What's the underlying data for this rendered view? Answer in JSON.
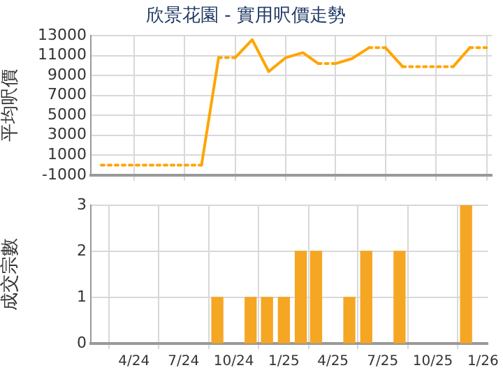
{
  "chart_data": [
    {
      "type": "line",
      "title": "欣景花園 - 實用呎價走勢",
      "ylabel": "平均呎價",
      "ylim": [
        -1000,
        13000
      ],
      "yticks": [
        -1000,
        1000,
        3000,
        5000,
        7000,
        9000,
        11000,
        13000
      ],
      "xlim": [
        "2024-01-13",
        "2026-01-10"
      ],
      "xticks": [
        {
          "value": "2024-04",
          "label": null
        },
        {
          "value": "2024-07",
          "label": null
        },
        {
          "value": "2024-10",
          "label": null
        },
        {
          "value": "2025-01",
          "label": null
        },
        {
          "value": "2025-04",
          "label": null
        },
        {
          "value": "2025-07",
          "label": null
        },
        {
          "value": "2025-10",
          "label": null
        },
        {
          "value": "2026-01",
          "label": null
        }
      ],
      "tick_labels": "y",
      "grid": true,
      "legend": false,
      "marker": "none",
      "series": [
        {
          "color": "#ffa500",
          "line_style": "dotted",
          "x": [
            "2024-02",
            "2024-03",
            "2024-04",
            "2024-05",
            "2024-06",
            "2024-07",
            "2024-08"
          ],
          "values": [
            0,
            0,
            0,
            0,
            0,
            0,
            0
          ]
        },
        {
          "color": "#ffa500",
          "line_style": "solid",
          "x": [
            "2024-08",
            "2024-09"
          ],
          "values": [
            0,
            10800
          ]
        },
        {
          "color": "#ffa500",
          "line_style": "dotted",
          "x": [
            "2024-09",
            "2024-10"
          ],
          "values": [
            10800,
            10800
          ]
        },
        {
          "color": "#ffa500",
          "line_style": "solid",
          "x": [
            "2024-10",
            "2024-11",
            "2024-12",
            "2025-01",
            "2025-02",
            "2025-03"
          ],
          "values": [
            10800,
            12600,
            9400,
            10800,
            11300,
            10200
          ]
        },
        {
          "color": "#ffa500",
          "line_style": "dotted",
          "x": [
            "2025-03",
            "2025-04"
          ],
          "values": [
            10200,
            10200
          ]
        },
        {
          "color": "#ffa500",
          "line_style": "solid",
          "x": [
            "2025-04",
            "2025-05",
            "2025-06"
          ],
          "values": [
            10200,
            10700,
            11800
          ]
        },
        {
          "color": "#ffa500",
          "line_style": "dotted",
          "x": [
            "2025-06",
            "2025-07"
          ],
          "values": [
            11800,
            11800
          ]
        },
        {
          "color": "#ffa500",
          "line_style": "solid",
          "x": [
            "2025-07",
            "2025-08"
          ],
          "values": [
            11800,
            9900
          ]
        },
        {
          "color": "#ffa500",
          "line_style": "dotted",
          "x": [
            "2025-08",
            "2025-09",
            "2025-10",
            "2025-11"
          ],
          "values": [
            9900,
            9900,
            9900,
            9900
          ]
        },
        {
          "color": "#ffa500",
          "line_style": "solid",
          "x": [
            "2025-11",
            "2025-12"
          ],
          "values": [
            9900,
            11800
          ]
        },
        {
          "color": "#ffa500",
          "line_style": "dotted",
          "x": [
            "2025-12",
            "2026-01"
          ],
          "values": [
            11800,
            11800
          ]
        }
      ]
    },
    {
      "type": "bar",
      "ylabel": "成交宗數",
      "ylim": [
        0,
        3
      ],
      "yticks": [
        0,
        1,
        2,
        3
      ],
      "xlim": [
        "2024-01-13",
        "2026-01-10"
      ],
      "xticks": [
        {
          "value": "2024-04",
          "label": "4/24"
        },
        {
          "value": "2024-07",
          "label": "7/24"
        },
        {
          "value": "2024-10",
          "label": "10/24"
        },
        {
          "value": "2025-01",
          "label": "1/25"
        },
        {
          "value": "2025-04",
          "label": "4/25"
        },
        {
          "value": "2025-07",
          "label": "7/25"
        },
        {
          "value": "2025-10",
          "label": "10/25"
        },
        {
          "value": "2026-01",
          "label": "1/26"
        }
      ],
      "grid": true,
      "legend": false,
      "x": [
        "2024-09",
        "2024-11",
        "2024-12",
        "2025-01",
        "2025-02",
        "2025-03",
        "2025-05",
        "2025-06",
        "2025-08",
        "2025-12"
      ],
      "values": [
        1,
        1,
        1,
        1,
        2,
        2,
        1,
        2,
        2,
        3
      ],
      "color": "#f5a623"
    }
  ]
}
